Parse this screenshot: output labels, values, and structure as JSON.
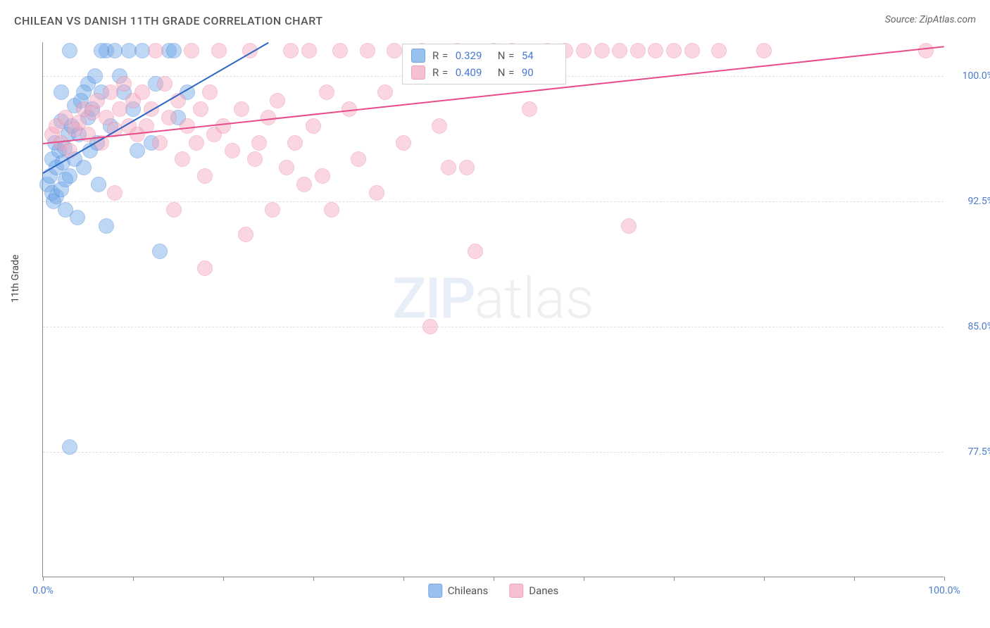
{
  "title": "CHILEAN VS DANISH 11TH GRADE CORRELATION CHART",
  "source": "Source: ZipAtlas.com",
  "ylabel": "11th Grade",
  "watermark": {
    "bold": "ZIP",
    "light": "atlas"
  },
  "chart": {
    "type": "scatter",
    "background_color": "#ffffff",
    "grid_color": "#e0e0e0",
    "axis_color": "#888888",
    "text_color": "#4a7bd0",
    "marker_radius": 11,
    "marker_opacity": 0.45,
    "marker_border_opacity": 0.9,
    "xlim": [
      0,
      100
    ],
    "ylim": [
      70,
      102
    ],
    "x_ticks": [
      0,
      10,
      20,
      30,
      40,
      50,
      60,
      70,
      80,
      90,
      100
    ],
    "x_tick_labels": {
      "0": "0.0%",
      "100": "100.0%"
    },
    "y_ticks": [
      77.5,
      85.0,
      92.5,
      100.0
    ],
    "y_tick_labels": [
      "77.5%",
      "85.0%",
      "92.5%",
      "100.0%"
    ],
    "series": [
      {
        "name": "Chileans",
        "color": "#6fa8e8",
        "border": "#3d7dd6",
        "R": "0.329",
        "N": "54",
        "trend": {
          "x1": 0,
          "y1": 94.2,
          "x2": 25,
          "y2": 102.0,
          "color": "#2b66c4",
          "width": 2
        },
        "points": [
          [
            0.5,
            93.5
          ],
          [
            0.8,
            94.0
          ],
          [
            1.0,
            93.0
          ],
          [
            1.0,
            95.0
          ],
          [
            1.2,
            92.5
          ],
          [
            1.3,
            96.0
          ],
          [
            1.5,
            94.5
          ],
          [
            1.5,
            92.8
          ],
          [
            1.8,
            95.5
          ],
          [
            2.0,
            93.2
          ],
          [
            2.0,
            97.3
          ],
          [
            2.2,
            94.8
          ],
          [
            2.4,
            95.7
          ],
          [
            2.5,
            93.8
          ],
          [
            2.5,
            92.0
          ],
          [
            2.8,
            96.5
          ],
          [
            3.0,
            94.0
          ],
          [
            3.2,
            97.0
          ],
          [
            3.5,
            95.0
          ],
          [
            3.5,
            98.2
          ],
          [
            3.8,
            91.5
          ],
          [
            4.0,
            96.5
          ],
          [
            4.2,
            98.5
          ],
          [
            4.5,
            94.5
          ],
          [
            5.0,
            97.5
          ],
          [
            5.0,
            99.5
          ],
          [
            5.2,
            95.5
          ],
          [
            5.5,
            98.0
          ],
          [
            5.8,
            100.0
          ],
          [
            6.0,
            96.0
          ],
          [
            6.2,
            93.5
          ],
          [
            6.5,
            99.0
          ],
          [
            7.0,
            91.0
          ],
          [
            7.0,
            101.5
          ],
          [
            7.5,
            97.0
          ],
          [
            8.0,
            101.5
          ],
          [
            8.5,
            100.0
          ],
          [
            9.0,
            99.0
          ],
          [
            3.0,
            77.8
          ],
          [
            10.0,
            98.0
          ],
          [
            10.5,
            95.5
          ],
          [
            11.0,
            101.5
          ],
          [
            12.0,
            96.0
          ],
          [
            12.5,
            99.5
          ],
          [
            14.0,
            101.5
          ],
          [
            14.5,
            101.5
          ],
          [
            15.0,
            97.5
          ],
          [
            16.0,
            99.0
          ],
          [
            13.0,
            89.5
          ],
          [
            4.5,
            99.0
          ],
          [
            6.5,
            101.5
          ],
          [
            9.5,
            101.5
          ],
          [
            3.0,
            101.5
          ],
          [
            2.0,
            99.0
          ]
        ]
      },
      {
        "name": "Danes",
        "color": "#f5a6bd",
        "border": "#e87da0",
        "R": "0.409",
        "N": "90",
        "trend": {
          "x1": 0,
          "y1": 96.0,
          "x2": 100,
          "y2": 101.8,
          "color": "#e84b8a",
          "width": 2
        },
        "points": [
          [
            1.0,
            96.5
          ],
          [
            1.5,
            97.0
          ],
          [
            2.0,
            96.0
          ],
          [
            2.5,
            97.5
          ],
          [
            3.0,
            95.5
          ],
          [
            3.5,
            96.8
          ],
          [
            4.0,
            97.2
          ],
          [
            4.5,
            98.0
          ],
          [
            5.0,
            96.5
          ],
          [
            5.5,
            97.8
          ],
          [
            6.0,
            98.5
          ],
          [
            6.5,
            96.0
          ],
          [
            7.0,
            97.5
          ],
          [
            7.5,
            99.0
          ],
          [
            8.0,
            96.8
          ],
          [
            8.5,
            98.0
          ],
          [
            9.0,
            99.5
          ],
          [
            9.5,
            97.0
          ],
          [
            10.0,
            98.5
          ],
          [
            10.5,
            96.5
          ],
          [
            11.0,
            99.0
          ],
          [
            11.5,
            97.0
          ],
          [
            12.0,
            98.0
          ],
          [
            12.5,
            101.5
          ],
          [
            13.0,
            96.0
          ],
          [
            13.5,
            99.5
          ],
          [
            14.0,
            97.5
          ],
          [
            15.0,
            98.5
          ],
          [
            15.5,
            95.0
          ],
          [
            16.0,
            97.0
          ],
          [
            16.5,
            101.5
          ],
          [
            17.0,
            96.0
          ],
          [
            17.5,
            98.0
          ],
          [
            18.0,
            94.0
          ],
          [
            18.5,
            99.0
          ],
          [
            19.0,
            96.5
          ],
          [
            19.5,
            101.5
          ],
          [
            20.0,
            97.0
          ],
          [
            21.0,
            95.5
          ],
          [
            22.0,
            98.0
          ],
          [
            22.5,
            90.5
          ],
          [
            23.0,
            101.5
          ],
          [
            24.0,
            96.0
          ],
          [
            25.0,
            97.5
          ],
          [
            25.5,
            92.0
          ],
          [
            26.0,
            98.5
          ],
          [
            27.0,
            94.5
          ],
          [
            27.5,
            101.5
          ],
          [
            28.0,
            96.0
          ],
          [
            29.0,
            93.5
          ],
          [
            29.5,
            101.5
          ],
          [
            30.0,
            97.0
          ],
          [
            31.0,
            94.0
          ],
          [
            32.0,
            92.0
          ],
          [
            33.0,
            101.5
          ],
          [
            34.0,
            98.0
          ],
          [
            35.0,
            95.0
          ],
          [
            36.0,
            101.5
          ],
          [
            37.0,
            93.0
          ],
          [
            38.0,
            99.0
          ],
          [
            39.0,
            101.5
          ],
          [
            40.0,
            96.0
          ],
          [
            18.0,
            88.5
          ],
          [
            42.0,
            101.5
          ],
          [
            44.0,
            97.0
          ],
          [
            45.0,
            94.5
          ],
          [
            43.0,
            85.0
          ],
          [
            46.0,
            101.5
          ],
          [
            47.0,
            94.5
          ],
          [
            48.0,
            89.5
          ],
          [
            50.0,
            101.5
          ],
          [
            52.0,
            101.5
          ],
          [
            54.0,
            98.0
          ],
          [
            56.0,
            101.5
          ],
          [
            58.0,
            101.5
          ],
          [
            60.0,
            101.5
          ],
          [
            62.0,
            101.5
          ],
          [
            64.0,
            101.5
          ],
          [
            65.0,
            91.0
          ],
          [
            66.0,
            101.5
          ],
          [
            68.0,
            101.5
          ],
          [
            70.0,
            101.5
          ],
          [
            72.0,
            101.5
          ],
          [
            75.0,
            101.5
          ],
          [
            80.0,
            101.5
          ],
          [
            98.0,
            101.5
          ],
          [
            14.5,
            92.0
          ],
          [
            23.5,
            95.0
          ],
          [
            31.5,
            99.0
          ],
          [
            8.0,
            93.0
          ]
        ]
      }
    ],
    "legend": [
      {
        "label": "Chileans",
        "color": "#6fa8e8",
        "border": "#3d7dd6"
      },
      {
        "label": "Danes",
        "color": "#f5a6bd",
        "border": "#e87da0"
      }
    ]
  }
}
